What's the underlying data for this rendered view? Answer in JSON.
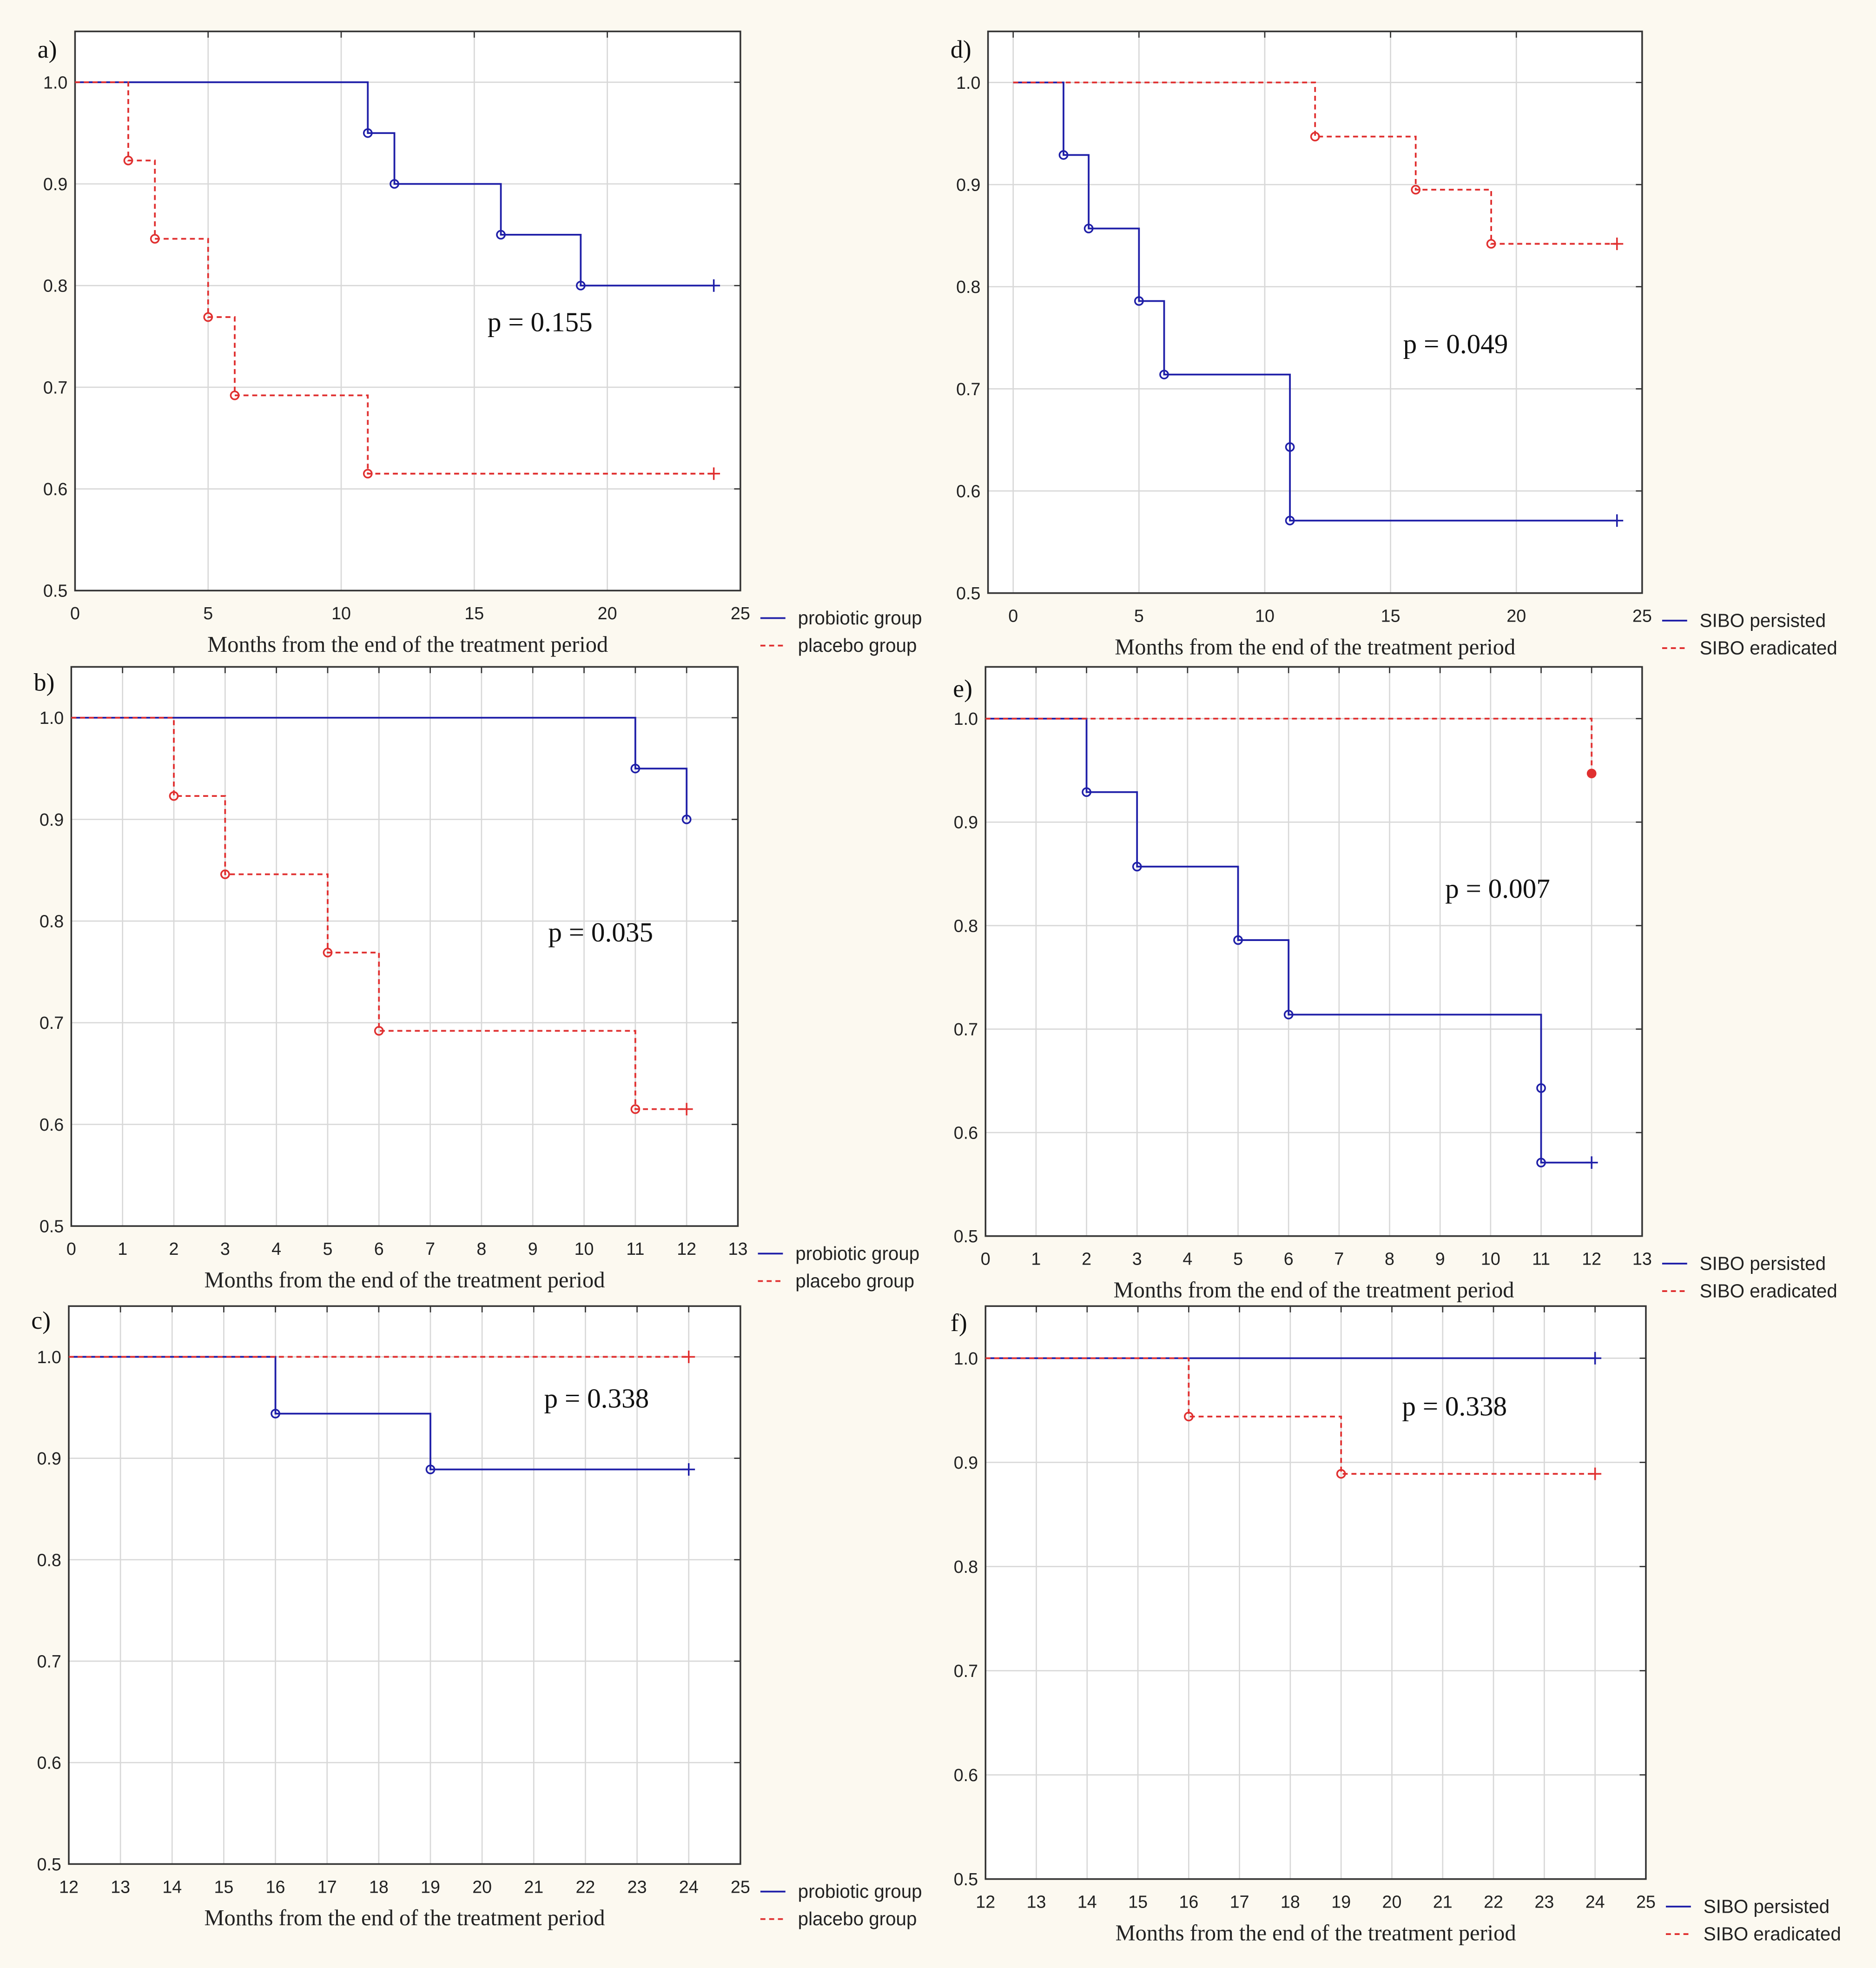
{
  "colors": {
    "series1": "#1f1fa8",
    "series2": "#e03030",
    "grid": "#d8d8d8"
  },
  "chart_data": [
    {
      "panel": "a)",
      "type": "line",
      "subtype": "kaplan-meier-step",
      "xlabel": "Months from the end of the treatment period",
      "ylabel": "",
      "xlim": [
        0,
        25
      ],
      "ylim": [
        0.5,
        1.05
      ],
      "xticks": [
        0,
        5,
        10,
        15,
        20,
        25
      ],
      "yticks": [
        0.5,
        0.6,
        0.7,
        0.8,
        0.9,
        1.0
      ],
      "ytick_labels": [
        "0.5",
        "0.6",
        "0.7",
        "0.8",
        "0.9",
        "1.0"
      ],
      "annotation": "p = 0.155",
      "legend_position": "bottom-right-outside",
      "series": [
        {
          "name": "probiotic group",
          "style": "solid",
          "start": 1.0,
          "events": [
            [
              11,
              0.95
            ],
            [
              12,
              0.9
            ],
            [
              16,
              0.85
            ],
            [
              19,
              0.8
            ]
          ],
          "censored": [
            [
              24,
              0.8
            ]
          ]
        },
        {
          "name": "placebo group",
          "style": "dashed",
          "start": 1.0,
          "events": [
            [
              2,
              0.923
            ],
            [
              3,
              0.846
            ],
            [
              5,
              0.769
            ],
            [
              6,
              0.692
            ],
            [
              11,
              0.615
            ]
          ],
          "censored": [
            [
              24,
              0.615
            ]
          ]
        }
      ]
    },
    {
      "panel": "b)",
      "type": "line",
      "subtype": "kaplan-meier-step",
      "xlabel": "Months from the end of the treatment period",
      "ylabel": "",
      "xlim": [
        0,
        13
      ],
      "ylim": [
        0.5,
        1.05
      ],
      "xticks": [
        0,
        1,
        2,
        3,
        4,
        5,
        6,
        7,
        8,
        9,
        10,
        11,
        12,
        13
      ],
      "yticks": [
        0.5,
        0.6,
        0.7,
        0.8,
        0.9,
        1.0
      ],
      "ytick_labels": [
        "0.5",
        "0.6",
        "0.7",
        "0.8",
        "0.9",
        "1.0"
      ],
      "annotation": "p = 0.035",
      "legend_position": "bottom-right-outside",
      "series": [
        {
          "name": "probiotic group",
          "style": "solid",
          "start": 1.0,
          "events": [
            [
              11,
              0.95
            ],
            [
              12,
              0.9
            ]
          ],
          "censored": []
        },
        {
          "name": "placebo group",
          "style": "dashed",
          "start": 1.0,
          "events": [
            [
              2,
              0.923
            ],
            [
              3,
              0.846
            ],
            [
              5,
              0.769
            ],
            [
              6,
              0.692
            ],
            [
              11,
              0.615
            ]
          ],
          "censored": [
            [
              12,
              0.615
            ]
          ]
        }
      ]
    },
    {
      "panel": "c)",
      "type": "line",
      "subtype": "kaplan-meier-step",
      "xlabel": "Months from the end of the treatment period",
      "ylabel": "",
      "xlim": [
        12,
        25
      ],
      "ylim": [
        0.5,
        1.05
      ],
      "xticks": [
        12,
        13,
        14,
        15,
        16,
        17,
        18,
        19,
        20,
        21,
        22,
        23,
        24,
        25
      ],
      "yticks": [
        0.5,
        0.6,
        0.7,
        0.8,
        0.9,
        1.0
      ],
      "ytick_labels": [
        "0.5",
        "0.6",
        "0.7",
        "0.8",
        "0.9",
        "1.0"
      ],
      "annotation": "p = 0.338",
      "legend_position": "bottom-right-outside",
      "series": [
        {
          "name": "probiotic group",
          "style": "solid",
          "start": 1.0,
          "events": [
            [
              16,
              0.944
            ],
            [
              19,
              0.889
            ]
          ],
          "censored": [
            [
              24,
              0.889
            ]
          ]
        },
        {
          "name": "placebo group",
          "style": "dashed",
          "start": 1.0,
          "events": [],
          "censored": [
            [
              24,
              1.0
            ]
          ]
        }
      ]
    },
    {
      "panel": "d)",
      "type": "line",
      "subtype": "kaplan-meier-step",
      "xlabel": "Months from the end of the treatment period",
      "ylabel": "",
      "xlim": [
        -1,
        25
      ],
      "ylim": [
        0.5,
        1.05
      ],
      "xticks": [
        0,
        5,
        10,
        15,
        20,
        25
      ],
      "yticks": [
        0.5,
        0.6,
        0.7,
        0.8,
        0.9,
        1.0
      ],
      "ytick_labels": [
        "0.5",
        "0.6",
        "0.7",
        "0.8",
        "0.9",
        "1.0"
      ],
      "annotation": "p = 0.049",
      "legend_position": "bottom-right-outside",
      "series": [
        {
          "name": "SIBO persisted",
          "style": "solid",
          "start": 1.0,
          "events": [
            [
              2,
              0.929
            ],
            [
              3,
              0.857
            ],
            [
              5,
              0.786
            ],
            [
              6,
              0.714
            ],
            [
              11,
              0.643
            ],
            [
              11,
              0.571
            ]
          ],
          "censored": [
            [
              24,
              0.571
            ]
          ]
        },
        {
          "name": "SIBO eradicated",
          "style": "dashed",
          "start": 1.0,
          "events": [
            [
              12,
              0.947
            ],
            [
              16,
              0.895
            ],
            [
              19,
              0.842
            ]
          ],
          "censored": [
            [
              24,
              0.842
            ]
          ]
        }
      ]
    },
    {
      "panel": "e)",
      "type": "line",
      "subtype": "kaplan-meier-step",
      "xlabel": "Months from the end of the treatment period",
      "ylabel": "",
      "xlim": [
        0,
        13
      ],
      "ylim": [
        0.5,
        1.05
      ],
      "xticks": [
        0,
        1,
        2,
        3,
        4,
        5,
        6,
        7,
        8,
        9,
        10,
        11,
        12,
        13
      ],
      "yticks": [
        0.5,
        0.6,
        0.7,
        0.8,
        0.9,
        1.0
      ],
      "ytick_labels": [
        "0.5",
        "0.6",
        "0.7",
        "0.8",
        "0.9",
        "1.0"
      ],
      "annotation": "p = 0.007",
      "legend_position": "bottom-right-outside",
      "series": [
        {
          "name": "SIBO persisted",
          "style": "solid",
          "start": 1.0,
          "events": [
            [
              2,
              0.929
            ],
            [
              3,
              0.857
            ],
            [
              5,
              0.786
            ],
            [
              6,
              0.714
            ],
            [
              11,
              0.643
            ],
            [
              11,
              0.571
            ]
          ],
          "censored": [
            [
              12,
              0.571
            ]
          ]
        },
        {
          "name": "SIBO eradicated",
          "style": "dashed",
          "start": 1.0,
          "events": [
            [
              12,
              0.947
            ]
          ],
          "censored": []
        }
      ]
    },
    {
      "panel": "f)",
      "type": "line",
      "subtype": "kaplan-meier-step",
      "xlabel": "Months from the end of the treatment period",
      "ylabel": "",
      "xlim": [
        12,
        25
      ],
      "ylim": [
        0.5,
        1.05
      ],
      "xticks": [
        12,
        13,
        14,
        15,
        16,
        17,
        18,
        19,
        20,
        21,
        22,
        23,
        24,
        25
      ],
      "yticks": [
        0.5,
        0.6,
        0.7,
        0.8,
        0.9,
        1.0
      ],
      "ytick_labels": [
        "0.5",
        "0.6",
        "0.7",
        "0.8",
        "0.9",
        "1.0"
      ],
      "annotation": "p = 0.338",
      "legend_position": "bottom-right-outside",
      "series": [
        {
          "name": "SIBO persisted",
          "style": "solid",
          "start": 1.0,
          "events": [],
          "censored": [
            [
              24,
              1.0
            ]
          ]
        },
        {
          "name": "SIBO eradicated",
          "style": "dashed",
          "start": 1.0,
          "events": [
            [
              16,
              0.944
            ],
            [
              19,
              0.889
            ]
          ],
          "censored": [
            [
              24,
              0.889
            ]
          ]
        }
      ]
    }
  ]
}
